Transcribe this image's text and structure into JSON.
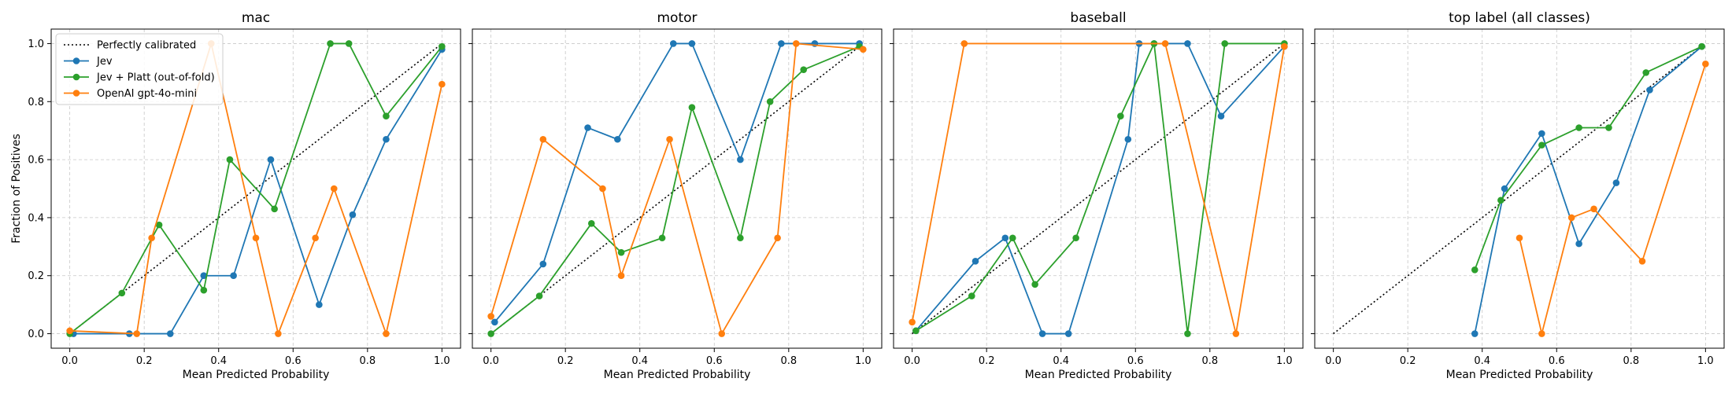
{
  "figure": {
    "ylabel": "Fraction of Positives"
  },
  "legend": {
    "entries": [
      {
        "label": "Perfectly calibrated",
        "color": "#000000",
        "style": "dotted"
      },
      {
        "label": "Jev",
        "color": "#1f77b4",
        "style": "line-marker"
      },
      {
        "label": "Jev + Platt (out-of-fold)",
        "color": "#2ca02c",
        "style": "line-marker"
      },
      {
        "label": "OpenAI gpt-4o-mini",
        "color": "#ff7f0e",
        "style": "line-marker"
      }
    ]
  },
  "chart_data": [
    {
      "type": "line",
      "title": "mac",
      "xlabel": "Mean Predicted Probability",
      "ylabel": "Fraction of Positives",
      "xlim": [
        -0.05,
        1.05
      ],
      "ylim": [
        -0.05,
        1.05
      ],
      "xticks": [
        "0.0",
        "0.2",
        "0.4",
        "0.6",
        "0.8",
        "1.0"
      ],
      "yticks": [
        "0.0",
        "0.2",
        "0.4",
        "0.6",
        "0.8",
        "1.0"
      ],
      "grid": true,
      "legend_position": "top-left",
      "reference_line": {
        "name": "Perfectly calibrated",
        "x": [
          0,
          1
        ],
        "y": [
          0,
          1
        ]
      },
      "series": [
        {
          "name": "Jev",
          "color": "#1f77b4",
          "x": [
            0.01,
            0.16,
            0.27,
            0.36,
            0.44,
            0.54,
            0.67,
            0.76,
            0.85,
            1.0
          ],
          "y": [
            0.0,
            0.0,
            0.0,
            0.2,
            0.2,
            0.6,
            0.1,
            0.41,
            0.67,
            0.98
          ]
        },
        {
          "name": "Jev + Platt (out-of-fold)",
          "color": "#2ca02c",
          "x": [
            0.0,
            0.14,
            0.24,
            0.36,
            0.43,
            0.55,
            0.7,
            0.75,
            0.85,
            1.0
          ],
          "y": [
            0.0,
            0.14,
            0.375,
            0.15,
            0.6,
            0.43,
            1.0,
            1.0,
            0.75,
            0.99
          ]
        },
        {
          "name": "OpenAI gpt-4o-mini",
          "color": "#ff7f0e",
          "x": [
            0.0,
            0.18,
            0.22,
            0.38,
            0.5,
            0.56,
            0.66,
            0.71,
            0.85,
            1.0
          ],
          "y": [
            0.01,
            0.0,
            0.33,
            1.0,
            0.33,
            0.0,
            0.33,
            0.5,
            0.0,
            0.86
          ]
        }
      ]
    },
    {
      "type": "line",
      "title": "motor",
      "xlabel": "Mean Predicted Probability",
      "xlim": [
        -0.05,
        1.05
      ],
      "ylim": [
        -0.05,
        1.05
      ],
      "xticks": [
        "0.0",
        "0.2",
        "0.4",
        "0.6",
        "0.8",
        "1.0"
      ],
      "yticks": [
        "0.0",
        "0.2",
        "0.4",
        "0.6",
        "0.8",
        "1.0"
      ],
      "grid": true,
      "reference_line": {
        "name": "Perfectly calibrated",
        "x": [
          0,
          1
        ],
        "y": [
          0,
          1
        ]
      },
      "series": [
        {
          "name": "Jev",
          "color": "#1f77b4",
          "x": [
            0.01,
            0.14,
            0.26,
            0.34,
            0.49,
            0.54,
            0.67,
            0.78,
            0.87,
            0.99
          ],
          "y": [
            0.04,
            0.24,
            0.71,
            0.67,
            1.0,
            1.0,
            0.6,
            1.0,
            1.0,
            1.0
          ]
        },
        {
          "name": "Jev + Platt (out-of-fold)",
          "color": "#2ca02c",
          "x": [
            0.0,
            0.13,
            0.27,
            0.35,
            0.46,
            0.54,
            0.67,
            0.75,
            0.84,
            0.99
          ],
          "y": [
            0.0,
            0.13,
            0.38,
            0.28,
            0.33,
            0.78,
            0.33,
            0.8,
            0.91,
            0.99
          ]
        },
        {
          "name": "OpenAI gpt-4o-mini",
          "color": "#ff7f0e",
          "x": [
            0.0,
            0.14,
            0.3,
            0.35,
            0.48,
            0.62,
            0.77,
            0.82,
            1.0
          ],
          "y": [
            0.06,
            0.67,
            0.5,
            0.2,
            0.67,
            0.0,
            0.33,
            1.0,
            0.98
          ]
        }
      ]
    },
    {
      "type": "line",
      "title": "baseball",
      "xlabel": "Mean Predicted Probability",
      "xlim": [
        -0.05,
        1.05
      ],
      "ylim": [
        -0.05,
        1.05
      ],
      "xticks": [
        "0.0",
        "0.2",
        "0.4",
        "0.6",
        "0.8",
        "1.0"
      ],
      "yticks": [
        "0.0",
        "0.2",
        "0.4",
        "0.6",
        "0.8",
        "1.0"
      ],
      "grid": true,
      "reference_line": {
        "name": "Perfectly calibrated",
        "x": [
          0,
          1
        ],
        "y": [
          0,
          1
        ]
      },
      "series": [
        {
          "name": "Jev",
          "color": "#1f77b4",
          "x": [
            0.01,
            0.17,
            0.25,
            0.35,
            0.42,
            0.58,
            0.61,
            0.65,
            0.74,
            0.83,
            1.0
          ],
          "y": [
            0.01,
            0.25,
            0.33,
            0.0,
            0.0,
            0.67,
            1.0,
            1.0,
            1.0,
            0.75,
            0.99
          ]
        },
        {
          "name": "Jev + Platt (out-of-fold)",
          "color": "#2ca02c",
          "x": [
            0.01,
            0.16,
            0.27,
            0.33,
            0.44,
            0.56,
            0.65,
            0.74,
            0.84,
            1.0
          ],
          "y": [
            0.01,
            0.13,
            0.33,
            0.17,
            0.33,
            0.75,
            1.0,
            0.0,
            1.0,
            1.0
          ]
        },
        {
          "name": "OpenAI gpt-4o-mini",
          "color": "#ff7f0e",
          "x": [
            0.0,
            0.14,
            0.68,
            0.87,
            1.0
          ],
          "y": [
            0.04,
            1.0,
            1.0,
            0.0,
            0.99
          ]
        }
      ]
    },
    {
      "type": "line",
      "title": "top label (all classes)",
      "xlabel": "Mean Predicted Probability",
      "xlim": [
        -0.05,
        1.05
      ],
      "ylim": [
        -0.05,
        1.05
      ],
      "xticks": [
        "0.0",
        "0.2",
        "0.4",
        "0.6",
        "0.8",
        "1.0"
      ],
      "yticks": [
        "0.0",
        "0.2",
        "0.4",
        "0.6",
        "0.8",
        "1.0"
      ],
      "grid": true,
      "reference_line": {
        "name": "Perfectly calibrated",
        "x": [
          0,
          1
        ],
        "y": [
          0,
          1
        ]
      },
      "series": [
        {
          "name": "Jev",
          "color": "#1f77b4",
          "x": [
            0.38,
            0.46,
            0.56,
            0.66,
            0.76,
            0.85,
            0.99
          ],
          "y": [
            0.0,
            0.5,
            0.69,
            0.31,
            0.52,
            0.84,
            0.99
          ]
        },
        {
          "name": "Jev + Platt (out-of-fold)",
          "color": "#2ca02c",
          "x": [
            0.38,
            0.45,
            0.56,
            0.66,
            0.74,
            0.84,
            0.99
          ],
          "y": [
            0.22,
            0.46,
            0.65,
            0.71,
            0.71,
            0.9,
            0.99
          ]
        },
        {
          "name": "OpenAI gpt-4o-mini",
          "color": "#ff7f0e",
          "x": [
            0.5,
            0.56,
            0.64,
            0.7,
            0.83,
            1.0
          ],
          "y": [
            0.33,
            0.0,
            0.4,
            0.43,
            0.25,
            0.93
          ]
        }
      ]
    }
  ]
}
